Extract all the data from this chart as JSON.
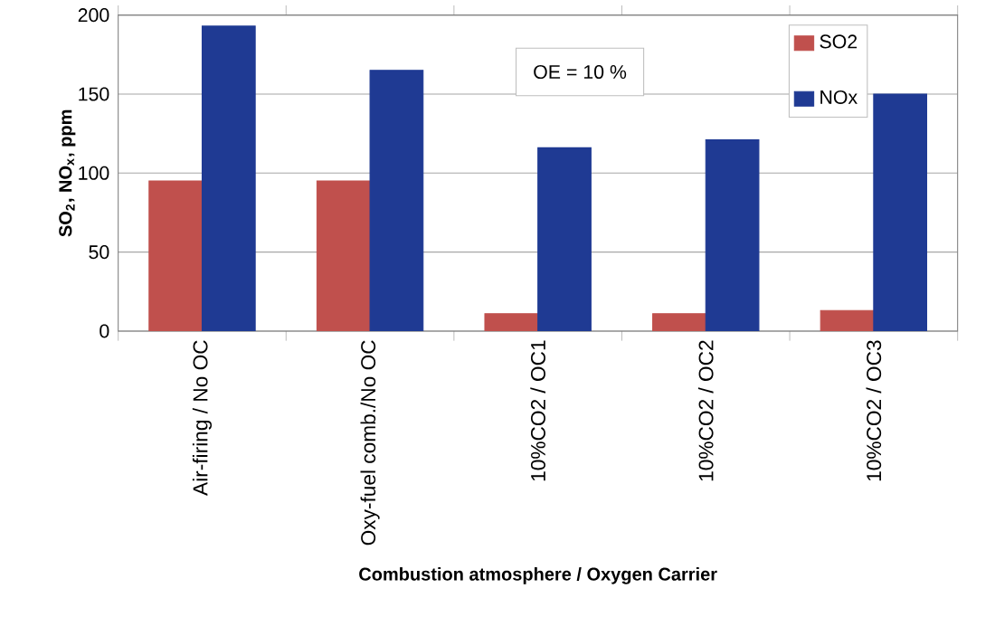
{
  "chart_data": {
    "type": "bar",
    "xlabel": "Combustion atmosphere / Oxygen Carrier",
    "ylabel": "SO$_{2}$, NO$_{x}$, ppm",
    "categories": [
      "Air-firing / No OC",
      "Oxy-fuel comb./No OC",
      "10%CO2 / OC1",
      "10%CO2 / OC2",
      "10%CO2 / OC3"
    ],
    "series": [
      {
        "name": "SO2",
        "color": "#c0504d",
        "values": [
          95,
          95,
          11,
          11,
          13
        ]
      },
      {
        "name": "NOx",
        "color": "#1f3a93",
        "values": [
          193,
          165,
          116,
          121,
          150
        ]
      }
    ],
    "ylim": [
      0,
      200
    ],
    "yticks": [
      0,
      50,
      100,
      150,
      200
    ],
    "grid": "y",
    "legend": "top right",
    "annotations": [
      "OE = 10 %"
    ]
  }
}
